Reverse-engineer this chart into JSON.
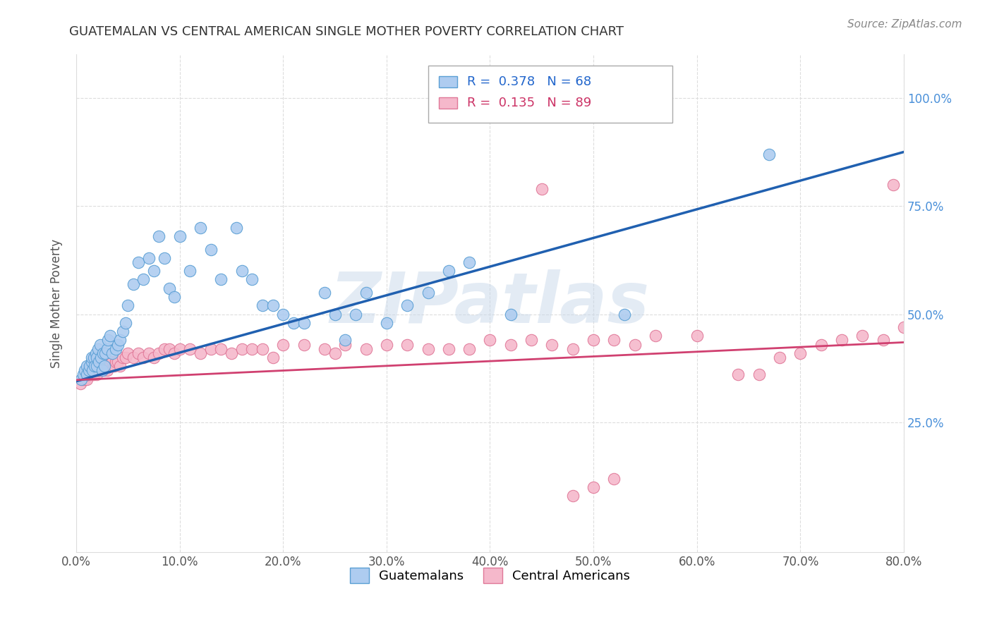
{
  "title": "GUATEMALAN VS CENTRAL AMERICAN SINGLE MOTHER POVERTY CORRELATION CHART",
  "source": "Source: ZipAtlas.com",
  "xlabel_ticks": [
    "0.0%",
    "10.0%",
    "20.0%",
    "30.0%",
    "40.0%",
    "50.0%",
    "60.0%",
    "70.0%",
    "80.0%"
  ],
  "xlabel_vals": [
    0.0,
    0.1,
    0.2,
    0.3,
    0.4,
    0.5,
    0.6,
    0.7,
    0.8
  ],
  "ylabel": "Single Mother Poverty",
  "ylabel_ticks": [
    "25.0%",
    "50.0%",
    "75.0%",
    "100.0%"
  ],
  "ylabel_vals": [
    0.25,
    0.5,
    0.75,
    1.0
  ],
  "xlim": [
    0.0,
    0.8
  ],
  "ylim": [
    -0.05,
    1.1
  ],
  "blue_R": 0.378,
  "blue_N": 68,
  "pink_R": 0.135,
  "pink_N": 89,
  "blue_color": "#aeccf0",
  "pink_color": "#f5b8cb",
  "blue_edge_color": "#5a9fd4",
  "pink_edge_color": "#e07898",
  "blue_line_color": "#2060b0",
  "pink_line_color": "#d04070",
  "legend_label_blue": "Guatemalans",
  "legend_label_pink": "Central Americans",
  "watermark": "ZIPatlas",
  "watermark_color": "#c8d8ea",
  "blue_scatter_x": [
    0.005,
    0.007,
    0.008,
    0.01,
    0.01,
    0.012,
    0.013,
    0.015,
    0.015,
    0.016,
    0.017,
    0.018,
    0.019,
    0.02,
    0.02,
    0.021,
    0.022,
    0.023,
    0.024,
    0.025,
    0.026,
    0.027,
    0.028,
    0.03,
    0.031,
    0.033,
    0.035,
    0.038,
    0.04,
    0.042,
    0.045,
    0.048,
    0.05,
    0.055,
    0.06,
    0.065,
    0.07,
    0.075,
    0.08,
    0.085,
    0.09,
    0.095,
    0.1,
    0.11,
    0.12,
    0.13,
    0.14,
    0.155,
    0.16,
    0.17,
    0.18,
    0.19,
    0.2,
    0.21,
    0.22,
    0.24,
    0.25,
    0.26,
    0.27,
    0.28,
    0.3,
    0.32,
    0.34,
    0.36,
    0.38,
    0.42,
    0.53,
    0.67
  ],
  "blue_scatter_y": [
    0.35,
    0.36,
    0.37,
    0.36,
    0.38,
    0.37,
    0.38,
    0.39,
    0.4,
    0.37,
    0.4,
    0.38,
    0.41,
    0.38,
    0.4,
    0.42,
    0.39,
    0.43,
    0.4,
    0.37,
    0.41,
    0.38,
    0.41,
    0.42,
    0.44,
    0.45,
    0.41,
    0.42,
    0.43,
    0.44,
    0.46,
    0.48,
    0.52,
    0.57,
    0.62,
    0.58,
    0.63,
    0.6,
    0.68,
    0.63,
    0.56,
    0.54,
    0.68,
    0.6,
    0.7,
    0.65,
    0.58,
    0.7,
    0.6,
    0.58,
    0.52,
    0.52,
    0.5,
    0.48,
    0.48,
    0.55,
    0.5,
    0.44,
    0.5,
    0.55,
    0.48,
    0.52,
    0.55,
    0.6,
    0.62,
    0.5,
    0.5,
    0.87
  ],
  "pink_scatter_x": [
    0.004,
    0.006,
    0.008,
    0.01,
    0.01,
    0.011,
    0.012,
    0.013,
    0.014,
    0.015,
    0.016,
    0.017,
    0.018,
    0.019,
    0.02,
    0.021,
    0.022,
    0.023,
    0.024,
    0.025,
    0.026,
    0.027,
    0.028,
    0.03,
    0.031,
    0.032,
    0.033,
    0.035,
    0.037,
    0.038,
    0.04,
    0.042,
    0.045,
    0.048,
    0.05,
    0.055,
    0.06,
    0.065,
    0.07,
    0.075,
    0.08,
    0.085,
    0.09,
    0.095,
    0.1,
    0.11,
    0.12,
    0.13,
    0.14,
    0.15,
    0.16,
    0.17,
    0.18,
    0.19,
    0.2,
    0.22,
    0.24,
    0.25,
    0.26,
    0.28,
    0.3,
    0.32,
    0.34,
    0.36,
    0.38,
    0.4,
    0.42,
    0.44,
    0.46,
    0.48,
    0.5,
    0.52,
    0.54,
    0.56,
    0.6,
    0.64,
    0.66,
    0.68,
    0.7,
    0.72,
    0.74,
    0.76,
    0.78,
    0.79,
    0.8,
    0.45,
    0.48,
    0.5,
    0.52
  ],
  "pink_scatter_y": [
    0.34,
    0.35,
    0.35,
    0.35,
    0.36,
    0.36,
    0.36,
    0.37,
    0.37,
    0.36,
    0.37,
    0.36,
    0.37,
    0.37,
    0.36,
    0.37,
    0.37,
    0.38,
    0.38,
    0.37,
    0.38,
    0.37,
    0.38,
    0.37,
    0.38,
    0.38,
    0.39,
    0.39,
    0.38,
    0.39,
    0.39,
    0.38,
    0.4,
    0.4,
    0.41,
    0.4,
    0.41,
    0.4,
    0.41,
    0.4,
    0.41,
    0.42,
    0.42,
    0.41,
    0.42,
    0.42,
    0.41,
    0.42,
    0.42,
    0.41,
    0.42,
    0.42,
    0.42,
    0.4,
    0.43,
    0.43,
    0.42,
    0.41,
    0.43,
    0.42,
    0.43,
    0.43,
    0.42,
    0.42,
    0.42,
    0.44,
    0.43,
    0.44,
    0.43,
    0.42,
    0.44,
    0.44,
    0.43,
    0.45,
    0.45,
    0.36,
    0.36,
    0.4,
    0.41,
    0.43,
    0.44,
    0.45,
    0.44,
    0.8,
    0.47,
    0.79,
    0.08,
    0.1,
    0.12
  ]
}
